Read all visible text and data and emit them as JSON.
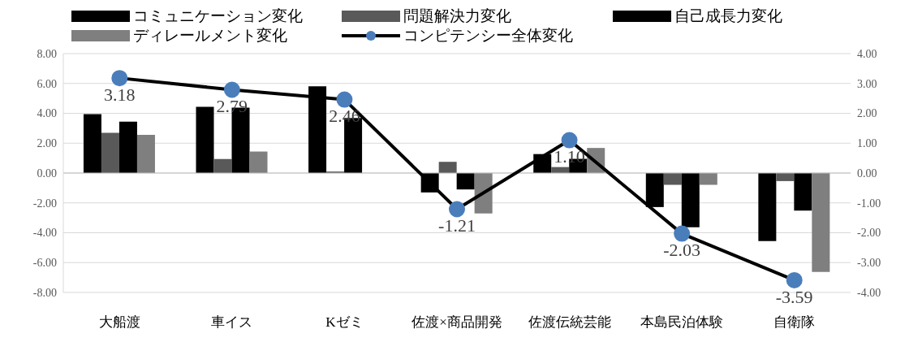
{
  "chart_data": {
    "type": "bar",
    "categories": [
      "大船渡",
      "車イス",
      "Kゼミ",
      "佐渡×商品開発",
      "佐渡伝統芸能",
      "本島民泊体験",
      "自衛隊"
    ],
    "series": [
      {
        "name": "コミュニケーション変化",
        "color": "#000000",
        "values": [
          3.95,
          4.43,
          5.81,
          -1.3,
          1.27,
          -2.28,
          -4.56
        ]
      },
      {
        "name": "問題解決力変化",
        "color": "#595959",
        "values": [
          2.7,
          0.94,
          0.1,
          0.75,
          0.4,
          -0.79,
          -0.54
        ]
      },
      {
        "name": "自己成長力変化",
        "color": "#000000",
        "values": [
          3.44,
          4.38,
          3.69,
          -1.1,
          0.95,
          -3.63,
          -2.52
        ]
      },
      {
        "name": "ディレールメント変化",
        "color": "#7f7f7f",
        "values": [
          2.56,
          1.44,
          0,
          -2.71,
          1.68,
          -0.79,
          -6.62
        ]
      },
      {
        "name": "コンピテンシー全体変化",
        "type": "line",
        "axis": "y2",
        "color": "#000000",
        "values": [
          3.18,
          2.79,
          2.46,
          -1.21,
          1.1,
          -2.03,
          -3.59
        ],
        "value_labels": [
          "3.18",
          "2.79",
          "2.46",
          "-1.21",
          "1.10",
          "-2.03",
          "-3.59"
        ]
      }
    ],
    "ylim": [
      -8,
      8
    ],
    "yticks": [
      {
        "value": -8,
        "label": "-8.00"
      },
      {
        "value": -6,
        "label": "-6.00"
      },
      {
        "value": -4,
        "label": "-4.00"
      },
      {
        "value": -2,
        "label": "-2.00"
      },
      {
        "value": 0,
        "label": "0.00"
      },
      {
        "value": 2,
        "label": "2.00"
      },
      {
        "value": 4,
        "label": "4.00"
      },
      {
        "value": 6,
        "label": "6.00"
      },
      {
        "value": 8,
        "label": "8.00"
      }
    ],
    "y2lim": [
      -4,
      4
    ],
    "y2ticks": [
      {
        "value": -4,
        "label": "-4.00"
      },
      {
        "value": -3,
        "label": "-3.00"
      },
      {
        "value": -2,
        "label": "-2.00"
      },
      {
        "value": -1,
        "label": "-1.00"
      },
      {
        "value": 0,
        "label": "0.00"
      },
      {
        "value": 1,
        "label": "1.00"
      },
      {
        "value": 2,
        "label": "2.00"
      },
      {
        "value": 3,
        "label": "3.00"
      },
      {
        "value": 4,
        "label": "4.00"
      }
    ],
    "grid": "y",
    "legend": "top",
    "marker": "circle"
  }
}
